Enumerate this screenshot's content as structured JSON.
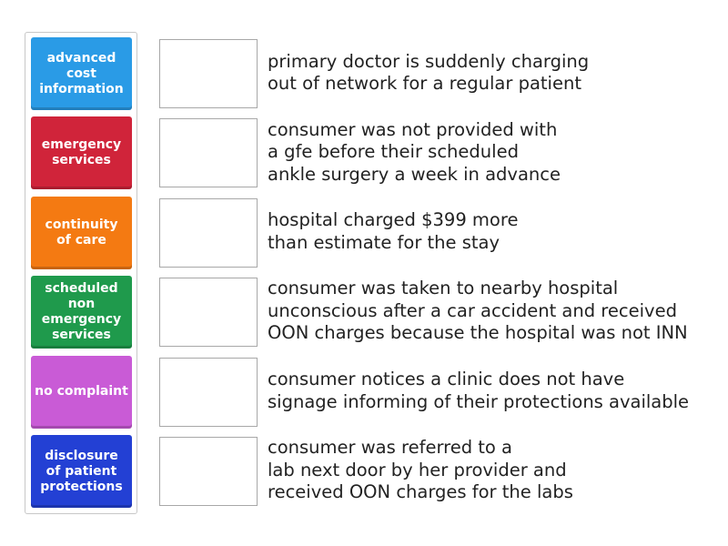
{
  "tiles": [
    {
      "lines": [
        "advanced",
        "cost",
        "information"
      ],
      "color": "#2a9be6"
    },
    {
      "lines": [
        "emergency",
        "services"
      ],
      "color": "#d0243a"
    },
    {
      "lines": [
        "continuity",
        "of care"
      ],
      "color": "#f47a12"
    },
    {
      "lines": [
        "scheduled",
        "non",
        "emergency",
        "services"
      ],
      "color": "#1f9a4c"
    },
    {
      "lines": [
        "no complaint"
      ],
      "color": "#c95bd6"
    },
    {
      "lines": [
        "disclosure",
        "of patient",
        "protections"
      ],
      "color": "#2340d4"
    }
  ],
  "prompts": [
    {
      "lines": [
        "primary doctor is suddenly charging",
        "out of network for a regular patient"
      ]
    },
    {
      "lines": [
        "consumer was not provided with",
        "a gfe before their scheduled",
        "ankle surgery a week in advance"
      ]
    },
    {
      "lines": [
        "hospital charged $399 more",
        "than estimate for the stay"
      ]
    },
    {
      "lines": [
        "consumer was taken to nearby hospital",
        "unconscious after a car accident and received",
        "OON charges because the hospital was not INN"
      ]
    },
    {
      "lines": [
        "consumer notices a clinic does not have",
        "signage informing of their protections available"
      ]
    },
    {
      "lines": [
        "consumer was referred to a",
        "lab next door by her provider and",
        "received OON charges for the labs"
      ]
    }
  ]
}
